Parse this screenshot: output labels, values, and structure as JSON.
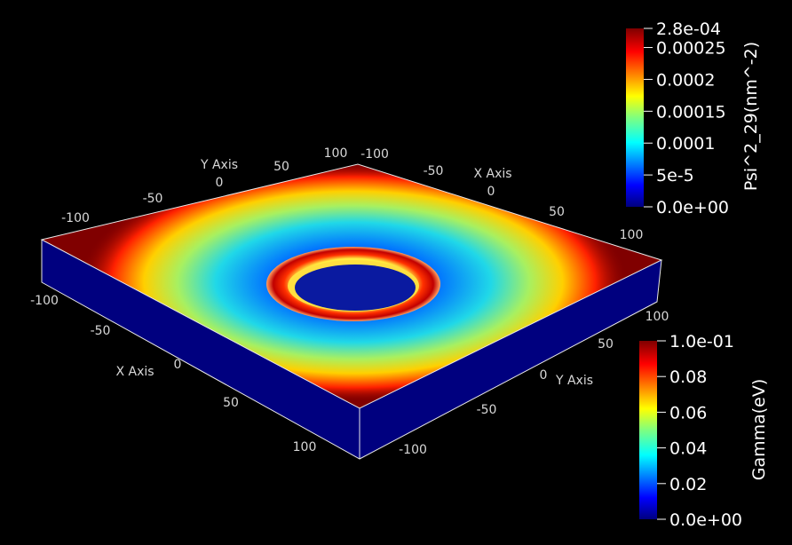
{
  "chart_data": {
    "type": "surface",
    "description_type": "3d-render",
    "axes": {
      "top_left": {
        "label": "Y Axis",
        "ticks": [
          "-100",
          "-50",
          "0",
          "50",
          "100"
        ]
      },
      "top_right": {
        "label": "X Axis",
        "ticks": [
          "-100",
          "-50",
          "0",
          "50",
          "100"
        ]
      },
      "bottom_left": {
        "label": "X Axis",
        "ticks": [
          "-100",
          "-50",
          "0",
          "50",
          "100"
        ]
      },
      "bottom_right": {
        "label": "Y Axis",
        "ticks": [
          "100",
          "50",
          "0",
          "-50",
          "-100"
        ]
      }
    },
    "xlim": [
      -100,
      100
    ],
    "ylim": [
      -100,
      100
    ],
    "colorbars": [
      {
        "title": "Psi^2_29(nm^-2)",
        "range": [
          0,
          0.00028
        ],
        "tick_labels": [
          "2.8e-04",
          "0.00025",
          "0.0002",
          "0.00015",
          "0.0001",
          "5e-5",
          "0.0e+00"
        ],
        "tick_values": [
          0.00028,
          0.00025,
          0.0002,
          0.00015,
          0.0001,
          5e-05,
          0
        ],
        "colormap": "jet"
      },
      {
        "title": "Gamma(eV)",
        "range": [
          0,
          0.1
        ],
        "tick_labels": [
          "1.0e-01",
          "0.08",
          "0.06",
          "0.04",
          "0.02",
          "0.0e+00"
        ],
        "tick_values": [
          0.1,
          0.08,
          0.06,
          0.04,
          0.02,
          0
        ],
        "colormap": "jet"
      }
    ],
    "colors": {
      "background": "#000000",
      "plane_max": "#800000",
      "slab": "#00007f"
    }
  }
}
